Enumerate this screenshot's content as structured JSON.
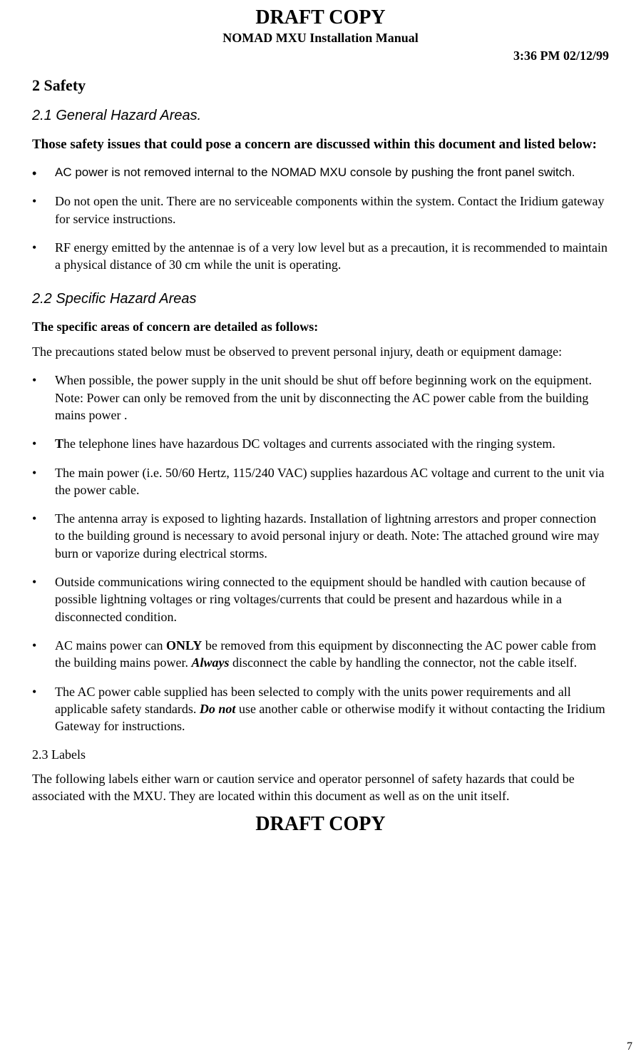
{
  "header": {
    "draft": "DRAFT COPY",
    "subtitle": "NOMAD MXU Installation Manual",
    "timestamp": "3:36 PM  02/12/99"
  },
  "section2": {
    "heading": "2    Safety",
    "s21": {
      "heading": "2.1    General Hazard Areas.",
      "intro": "Those safety issues that could pose a concern are discussed within this document and listed below:",
      "bullets": [
        "AC power is not removed internal to the NOMAD MXU console by pushing the front panel switch.",
        "Do not open the unit. There are no serviceable components within the system.  Contact the Iridium gateway for service instructions.",
        "RF energy emitted by the antennae is of a very low level  but as a precaution,  it is recommended  to maintain a  physical distance of 30 cm while the unit is operating."
      ]
    },
    "s22": {
      "heading": "2.2    Specific Hazard Areas",
      "intro_bold": "The specific areas of concern are detailed as follows:",
      "intro_para": "The precautions stated below must be observed to prevent personal injury, death or equipment damage:",
      "bullets_html": [
        "When possible, the power supply in the unit should be shut off before beginning work on the equipment.  Note:  Power can only be removed from the unit by disconnecting the AC power cable from the building mains power .",
        "<b>T</b>he telephone lines have hazardous DC voltages and currents associated with the ringing system.",
        "The main power (i.e. 50/60 Hertz, 115/240 VAC) supplies hazardous AC voltage and current to the unit via the power cable.",
        "The antenna array is exposed to lighting hazards.  Installation of lightning arrestors and proper connection to the building ground is necessary to avoid personal injury or death.  Note:  The attached ground wire may burn or vaporize during electrical storms.",
        "Outside communications wiring connected to the equipment should be handled with caution because of possible lightning voltages or ring voltages/currents that could be present and hazardous while in a disconnected condition.",
        "AC mains power can <b>ONLY</b> be removed from this equipment by disconnecting the AC power cable from the building mains power.  <i><b>Always</b></i> disconnect the cable by handling the connector, not the cable itself.",
        "The AC power cable supplied has been selected to comply with the units power requirements and all applicable safety standards.  <i><b>Do not</b></i> use another cable or otherwise modify it without contacting the Iridium Gateway for instructions."
      ]
    },
    "s23": {
      "heading": "2.3  Labels",
      "para": "The following labels either warn or caution service and operator personnel of safety hazards that could be associated with the MXU.  They are located within this document as well as on the unit itself."
    }
  },
  "footer": {
    "draft": "DRAFT COPY",
    "page_number": "7"
  }
}
